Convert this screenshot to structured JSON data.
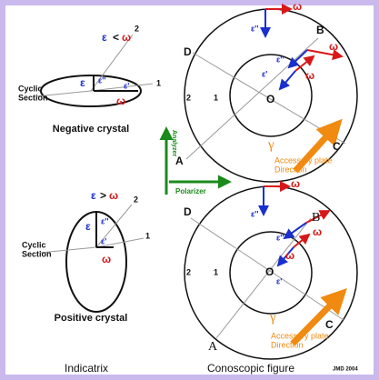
{
  "indicatrix": {
    "negative": {
      "relation": [
        "ε",
        "<",
        "ω"
      ],
      "axes": [
        "2",
        "1"
      ],
      "cyclic_section": [
        "Cyclic",
        "Section"
      ],
      "epsilon": "ε",
      "epsilon_2": "ε''",
      "epsilon_1": "ε'",
      "omega": "ω",
      "caption": "Negative crystal"
    },
    "positive": {
      "relation": [
        "ε",
        ">",
        "ω"
      ],
      "axes": [
        "2",
        "1"
      ],
      "cyclic_section": [
        "Cyclic",
        "Section"
      ],
      "epsilon": "ε",
      "epsilon_2": "ε''",
      "epsilon_1": "ε'",
      "omega": "ω",
      "caption": "Positive crystal"
    },
    "caption": "Indicatrix"
  },
  "conoscopic": {
    "top": {
      "points": [
        "D",
        "B",
        "A",
        "C"
      ],
      "center": "O",
      "rings": [
        "2",
        "1"
      ],
      "epsilon_2": "ε''",
      "epsilon_1": "ε'",
      "omega": "ω",
      "gamma": "γ",
      "accessory": [
        "Accessory plate",
        "Direction"
      ]
    },
    "bottom": {
      "points": [
        "D",
        "B",
        "A",
        "C"
      ],
      "center": "O",
      "rings": [
        "2",
        "1"
      ],
      "epsilon_2": "ε''",
      "epsilon_1": "ε'",
      "omega": "ω",
      "gamma": "γ",
      "accessory": [
        "Accessory plate",
        "Direction"
      ]
    },
    "analyzer": "Analyzer",
    "polarizer": "Polarizer",
    "caption": "Conoscopic figure",
    "credit": "JMD 2004"
  }
}
